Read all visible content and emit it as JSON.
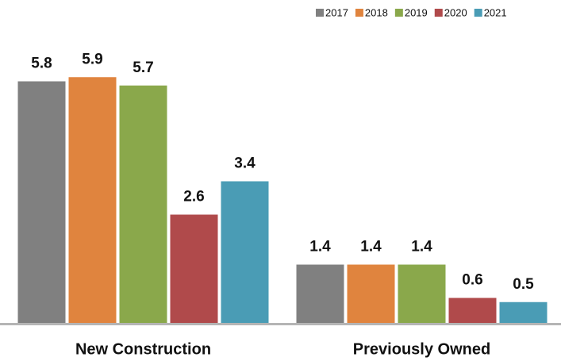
{
  "chart_data": {
    "type": "bar",
    "categories": [
      "New Construction",
      "Previously Owned"
    ],
    "series": [
      {
        "name": "2017",
        "color": "#808080",
        "values": [
          5.8,
          1.4
        ]
      },
      {
        "name": "2018",
        "color": "#e0843e",
        "values": [
          5.9,
          1.4
        ]
      },
      {
        "name": "2019",
        "color": "#8aa84b",
        "values": [
          5.7,
          1.4
        ]
      },
      {
        "name": "2020",
        "color": "#b04a4b",
        "values": [
          2.6,
          0.6
        ]
      },
      {
        "name": "2021",
        "color": "#4a9cb5",
        "values": [
          3.4,
          0.5
        ]
      }
    ],
    "ylim": [
      0,
      6
    ],
    "grid": false,
    "legend": "top-right"
  }
}
